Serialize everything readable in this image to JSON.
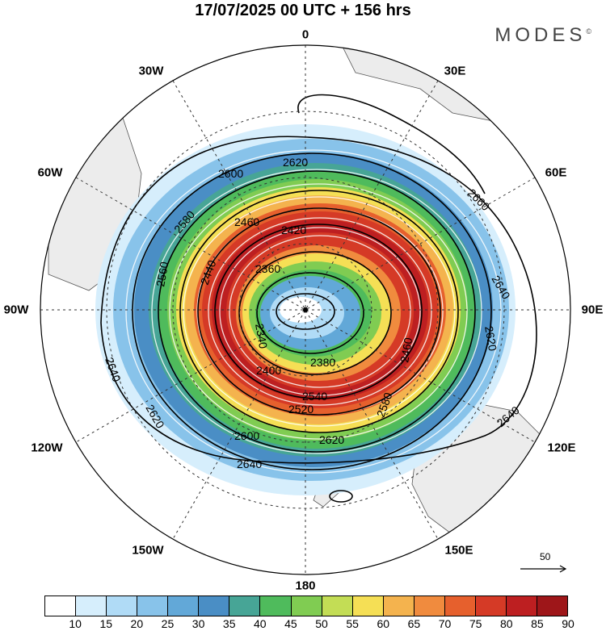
{
  "header": {
    "title": "17/07/2025  00 UTC  + 156 hrs",
    "brand": "MODES",
    "brand_mark": "©"
  },
  "longitude_labels": {
    "n0": "0",
    "n30e": "30E",
    "n60e": "60E",
    "n90e": "90E",
    "n120e": "120E",
    "n150e": "150E",
    "n180": "180",
    "n150w": "150W",
    "n120w": "120W",
    "n90w": "90W",
    "n60w": "60W",
    "n30w": "30W"
  },
  "contour_labels": [
    "2620",
    "2600",
    "2580",
    "2560",
    "2540",
    "2520",
    "2460",
    "2440",
    "2420",
    "2400",
    "2380",
    "2360",
    "2340",
    "2640",
    "2660"
  ],
  "colorbar": {
    "colors": [
      "#ffffff",
      "#d6eefc",
      "#b0dbf6",
      "#88c3ea",
      "#62a8d8",
      "#4a8ec5",
      "#47a596",
      "#4fbb5c",
      "#80cc52",
      "#c3dd55",
      "#f5df55",
      "#f4b34e",
      "#f08b3e",
      "#e6602d",
      "#d53a26",
      "#bd1f21",
      "#9e1619"
    ],
    "ticks": [
      "10",
      "15",
      "20",
      "25",
      "30",
      "35",
      "40",
      "45",
      "50",
      "55",
      "60",
      "65",
      "70",
      "75",
      "80",
      "85",
      "90"
    ]
  },
  "vector_reference": {
    "value": "50"
  }
}
